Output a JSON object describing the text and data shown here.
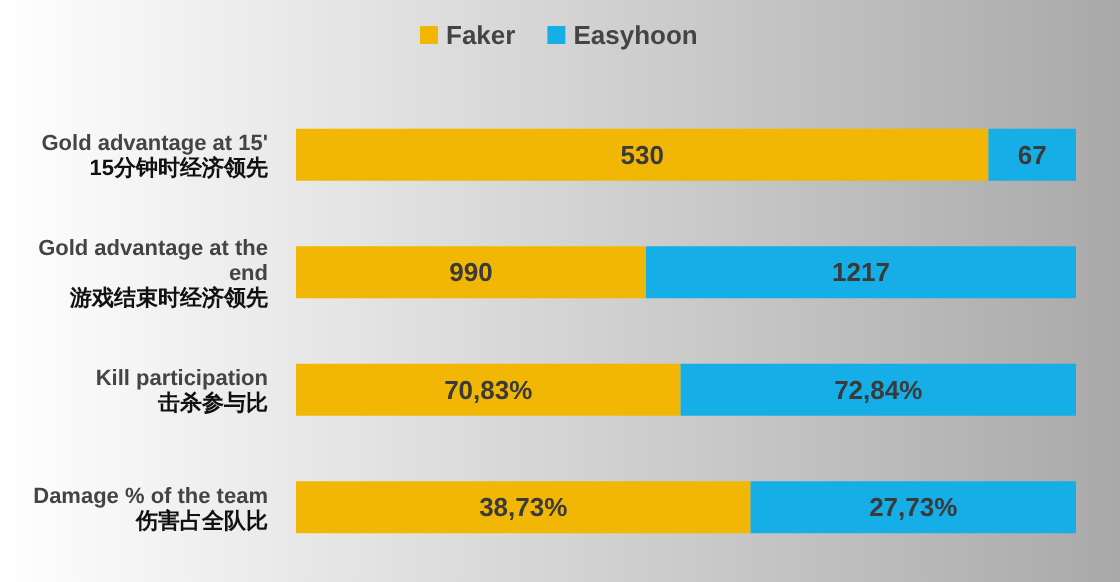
{
  "chart_data": [
    {
      "type": "bar",
      "orientation": "horizontal",
      "stacked": true,
      "legend": "top",
      "categories": [
        "Gold advantage at 15'\n15分钟时经济领先"
      ],
      "series": [
        {
          "name": "Faker",
          "color": "#f2b705",
          "values": [
            530
          ],
          "value_labels": [
            "530"
          ]
        },
        {
          "name": "Easyhoon",
          "color": "#16aee6",
          "values": [
            67
          ],
          "value_labels": [
            "67"
          ]
        }
      ]
    },
    {
      "type": "bar",
      "orientation": "horizontal",
      "stacked": true,
      "categories": [
        "Gold advantage at the\nend\n游戏结束时经济领先"
      ],
      "series": [
        {
          "color": "#f2b705",
          "values": [
            990
          ],
          "value_labels": [
            "990"
          ]
        },
        {
          "color": "#16aee6",
          "values": [
            1217
          ],
          "value_labels": [
            "1217"
          ]
        }
      ]
    },
    {
      "type": "bar",
      "orientation": "horizontal",
      "stacked": true,
      "categories": [
        "Kill participation\n击杀参与比"
      ],
      "series": [
        {
          "color": "#f2b705",
          "values": [
            70.83
          ],
          "value_labels": [
            "70,83%"
          ]
        },
        {
          "color": "#16aee6",
          "values": [
            72.84
          ],
          "value_labels": [
            "72,84%"
          ]
        }
      ]
    },
    {
      "type": "bar",
      "orientation": "horizontal",
      "stacked": true,
      "categories": [
        "Damage % of the team\n伤害占全队比"
      ],
      "series": [
        {
          "color": "#f2b705",
          "values": [
            38.73
          ],
          "value_labels": [
            "38,73%"
          ]
        },
        {
          "color": "#16aee6",
          "values": [
            27.73
          ],
          "value_labels": [
            "27,73%"
          ]
        }
      ]
    }
  ]
}
